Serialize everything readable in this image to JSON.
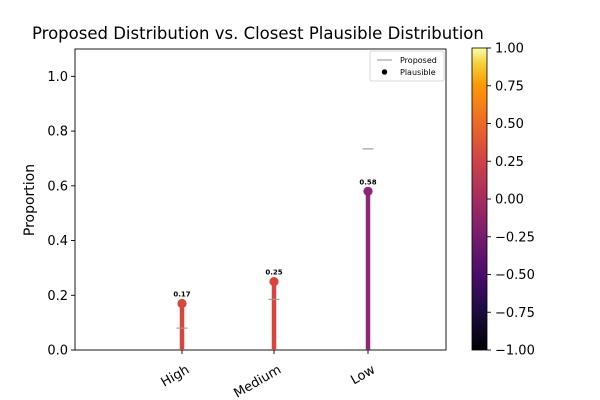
{
  "chart_data": {
    "type": "lollipop",
    "title": "Proposed Distribution vs. Closest Plausible Distribution",
    "xlabel": "",
    "ylabel": "Proportion",
    "categories": [
      "High",
      "Medium",
      "Low"
    ],
    "series": [
      {
        "name": "Proposed",
        "marker": "horizontal-line",
        "values": [
          0.08,
          0.185,
          0.735
        ]
      },
      {
        "name": "Plausible",
        "marker": "dot-with-stem",
        "values": [
          0.17,
          0.25,
          0.58
        ]
      }
    ],
    "point_labels": [
      "0.17",
      "0.25",
      "0.58"
    ],
    "stem_colors": [
      "#d9453c",
      "#d9453c",
      "#8a2877"
    ],
    "ylim": [
      0,
      1.1
    ],
    "yticks": [
      "0.0",
      "0.2",
      "0.4",
      "0.6",
      "0.8",
      "1.0"
    ],
    "grid": false,
    "legend": {
      "position": "top-right",
      "entries": [
        "Proposed",
        "Plausible"
      ]
    },
    "colorbar": {
      "colormap": "inferno",
      "range": [
        -1,
        1
      ],
      "ticks": [
        "−1.00",
        "−0.75",
        "−0.50",
        "−0.25",
        "0.00",
        "0.25",
        "0.50",
        "0.75",
        "1.00"
      ]
    }
  }
}
